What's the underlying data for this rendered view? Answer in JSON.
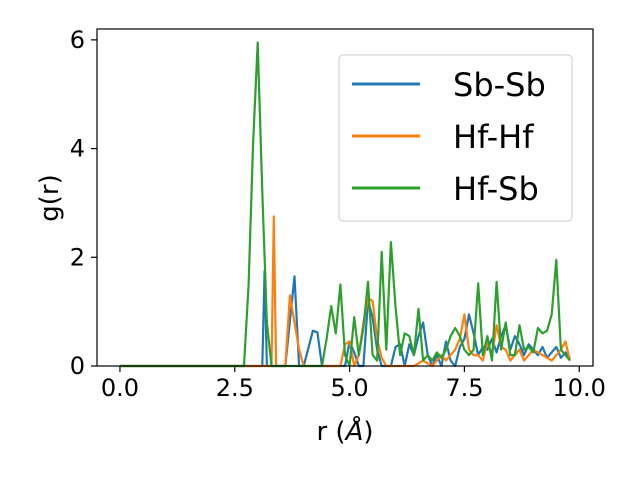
{
  "chart_data": {
    "type": "line",
    "xlabel_prefix": "r (",
    "xlabel_unit": "Å",
    "xlabel_suffix": ")",
    "ylabel": "g(r)",
    "xlim": [
      -0.5,
      10.3
    ],
    "ylim": [
      0,
      6.2
    ],
    "xticks": [
      0.0,
      2.5,
      5.0,
      7.5,
      10.0
    ],
    "xtick_labels": [
      "0.0",
      "2.5",
      "5.0",
      "7.5",
      "10.0"
    ],
    "yticks": [
      0,
      2,
      4,
      6
    ],
    "ytick_labels": [
      "0",
      "2",
      "4",
      "6"
    ],
    "grid": false,
    "legend_position": "upper right",
    "series": [
      {
        "name": "Sb-Sb",
        "color": "#1f77b4",
        "x": [
          0.0,
          3.0,
          3.1,
          3.15,
          3.2,
          3.3,
          3.4,
          3.6,
          3.8,
          3.9,
          4.0,
          4.2,
          4.3,
          4.4,
          4.5,
          4.7,
          4.9,
          5.0,
          5.1,
          5.2,
          5.3,
          5.4,
          5.5,
          5.6,
          5.7,
          5.8,
          5.9,
          6.0,
          6.1,
          6.2,
          6.3,
          6.4,
          6.5,
          6.6,
          6.7,
          6.8,
          6.9,
          7.0,
          7.1,
          7.2,
          7.3,
          7.4,
          7.5,
          7.6,
          7.7,
          7.8,
          7.9,
          8.0,
          8.1,
          8.2,
          8.3,
          8.4,
          8.5,
          8.6,
          8.7,
          8.8,
          8.9,
          9.0,
          9.1,
          9.2,
          9.3,
          9.4,
          9.5,
          9.6,
          9.7,
          9.8
        ],
        "y": [
          0,
          0,
          0,
          1.75,
          0,
          0,
          0,
          0,
          1.65,
          0,
          0,
          0.65,
          0.62,
          0,
          0,
          0,
          0,
          0.45,
          0.25,
          0,
          0,
          1.2,
          0.9,
          0.3,
          0,
          0,
          0,
          0.35,
          0.4,
          0,
          0.4,
          0.2,
          0.55,
          0.8,
          0.2,
          0,
          0.2,
          0,
          0.45,
          0.1,
          0,
          0.35,
          0.5,
          0.95,
          0.6,
          0.2,
          0.35,
          0.3,
          0.5,
          0.25,
          0.55,
          0.75,
          0.3,
          0.55,
          0.4,
          0.2,
          0.4,
          0.3,
          0.2,
          0.35,
          0.15,
          0.25,
          0.35,
          0.15,
          0.25,
          0.15
        ]
      },
      {
        "name": "Hf-Hf",
        "color": "#ff7f0e",
        "x": [
          0.0,
          3.2,
          3.3,
          3.35,
          3.4,
          3.5,
          3.6,
          3.7,
          3.8,
          3.9,
          4.0,
          4.1,
          4.8,
          4.9,
          5.0,
          5.1,
          5.2,
          5.3,
          5.4,
          5.5,
          5.6,
          5.7,
          5.8,
          5.9,
          6.0,
          6.2,
          6.4,
          6.6,
          6.8,
          7.0,
          7.1,
          7.2,
          7.3,
          7.4,
          7.5,
          7.6,
          7.7,
          7.8,
          7.9,
          8.0,
          8.1,
          8.2,
          8.3,
          8.4,
          8.5,
          8.6,
          8.7,
          8.8,
          9.0,
          9.2,
          9.4,
          9.6,
          9.7,
          9.8
        ],
        "y": [
          0,
          0,
          0,
          2.75,
          0,
          0,
          0,
          1.3,
          0.8,
          0.3,
          0,
          0,
          0,
          0.4,
          0.45,
          0,
          0.2,
          0.8,
          1.25,
          1.2,
          0.5,
          0.15,
          0,
          0,
          0,
          0,
          0,
          0.1,
          0,
          0.2,
          0.1,
          0.2,
          0.3,
          0.5,
          0.95,
          0.3,
          0.2,
          0.2,
          0.1,
          0.45,
          0.2,
          0.75,
          0.35,
          0.3,
          0.1,
          0.2,
          0.3,
          0.1,
          0.3,
          0.2,
          0.1,
          0.3,
          0.45,
          0.1
        ]
      },
      {
        "name": "Hf-Sb",
        "color": "#2ca02c",
        "x": [
          0.0,
          2.6,
          2.7,
          2.8,
          2.9,
          3.0,
          3.1,
          3.2,
          3.3,
          3.4,
          4.3,
          4.4,
          4.5,
          4.6,
          4.7,
          4.8,
          4.9,
          5.0,
          5.1,
          5.2,
          5.3,
          5.4,
          5.5,
          5.6,
          5.7,
          5.8,
          5.9,
          6.0,
          6.1,
          6.2,
          6.3,
          6.4,
          6.5,
          6.6,
          6.7,
          6.8,
          6.9,
          7.0,
          7.1,
          7.2,
          7.3,
          7.4,
          7.5,
          7.6,
          7.7,
          7.8,
          7.9,
          8.0,
          8.1,
          8.2,
          8.3,
          8.4,
          8.5,
          8.6,
          8.7,
          8.8,
          8.9,
          9.0,
          9.1,
          9.2,
          9.3,
          9.4,
          9.5,
          9.6,
          9.7,
          9.8
        ],
        "y": [
          0,
          0,
          0,
          1.5,
          4.1,
          5.95,
          3.2,
          0.8,
          0,
          0,
          0,
          0,
          0.5,
          1.1,
          0.6,
          1.5,
          0.2,
          0,
          0.9,
          0.2,
          0.7,
          1.55,
          0.2,
          0.1,
          2.1,
          0.3,
          2.28,
          1.1,
          0.2,
          0.6,
          0.55,
          0.2,
          1.05,
          0.1,
          0.2,
          0.1,
          0.25,
          0.15,
          0.3,
          0.55,
          0.7,
          0.55,
          0.3,
          0.2,
          0.3,
          1.52,
          0.2,
          0.55,
          0.1,
          1.55,
          0.3,
          0.8,
          0.2,
          0.2,
          0.75,
          0.3,
          0.35,
          0.25,
          0.7,
          0.6,
          0.65,
          0.95,
          1.95,
          0.3,
          0.2,
          0.1
        ]
      }
    ]
  }
}
